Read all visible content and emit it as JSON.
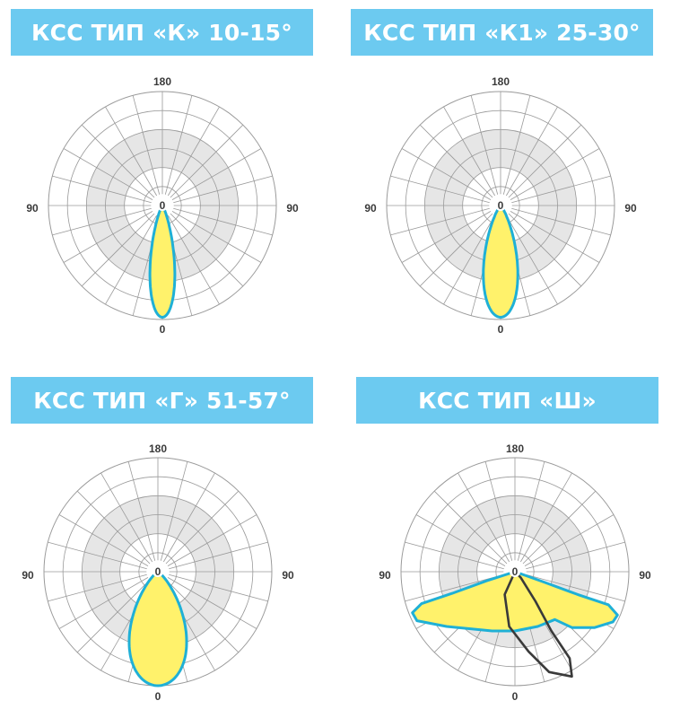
{
  "diagrams": [
    {
      "title": "КСС ТИП «К» 10-15°",
      "label_top": "180",
      "label_bottom": "0",
      "label_left": "90",
      "label_right": "90",
      "label_center": "0",
      "curve": "K"
    },
    {
      "title": "КСС ТИП «К1» 25-30°",
      "label_top": "180",
      "label_bottom": "0",
      "label_left": "90",
      "label_right": "90",
      "label_center": "0",
      "curve": "K1"
    },
    {
      "title": "КСС ТИП «Г» 51-57°",
      "label_top": "180",
      "label_bottom": "0",
      "label_left": "90",
      "label_right": "90",
      "label_center": "0",
      "curve": "G"
    },
    {
      "title": "КСС ТИП «Ш»",
      "label_top": "180",
      "label_bottom": "0",
      "label_left": "90",
      "label_right": "90",
      "label_center": "0",
      "curve": "Sh"
    }
  ],
  "colors": {
    "banner": "#6ccaf0",
    "curve_fill": "#fff26b",
    "curve_stroke": "#1fb0d6",
    "secondary_curve": "#3a3a3a",
    "ring_shade": "#e6e6e6",
    "grid": "#9a9a9a"
  }
}
